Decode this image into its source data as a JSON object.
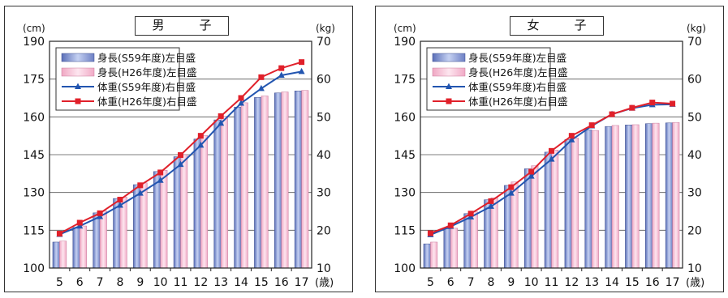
{
  "legend": {
    "height_s59": "身長(S59年度)左目盛",
    "height_h26": "身長(H26年度)左目盛",
    "weight_s59": "体重(S59年度)右目盛",
    "weight_h26": "体重(H26年度)右目盛"
  },
  "colors": {
    "height_s59": "#8fa3d6",
    "height_h26": "#f7c8da",
    "weight_s59": "#2255b0",
    "weight_h26": "#e0202a",
    "gridline": "#555555"
  },
  "chart_data": [
    {
      "title": "男　子",
      "type": "bar+line",
      "x": [
        "5",
        "6",
        "7",
        "8",
        "9",
        "10",
        "11",
        "12",
        "13",
        "14",
        "15",
        "16",
        "17"
      ],
      "x_unit": "(歳)",
      "y_left": {
        "unit": "(cm)",
        "range": [
          100,
          190
        ],
        "ticks": [
          100,
          115,
          130,
          145,
          160,
          175,
          190
        ]
      },
      "y_right": {
        "unit": "(kg)",
        "range": [
          10,
          70
        ],
        "ticks": [
          10,
          20,
          30,
          40,
          50,
          60,
          70
        ]
      },
      "grid": true,
      "legend_position": "top-left",
      "series": [
        {
          "name": "身長(S59年度)左目盛",
          "kind": "bar",
          "axis": "left",
          "values": [
            110.3,
            116.1,
            121.9,
            127.6,
            133.1,
            138.3,
            144.2,
            151.2,
            158.8,
            163.9,
            167.7,
            169.5,
            170.3
          ]
        },
        {
          "name": "身長(H26年度)左目盛",
          "kind": "bar",
          "axis": "left",
          "values": [
            110.7,
            116.7,
            122.7,
            128.2,
            133.8,
            138.8,
            145.0,
            152.6,
            160.3,
            165.6,
            168.3,
            169.9,
            170.5
          ]
        },
        {
          "name": "体重(S59年度)右目盛",
          "kind": "line",
          "axis": "right",
          "values": [
            18.9,
            21.1,
            23.6,
            26.6,
            29.8,
            33.2,
            37.4,
            42.5,
            48.3,
            53.6,
            57.5,
            61.0,
            62.0
          ]
        },
        {
          "name": "体重(H26年度)右目盛",
          "kind": "line",
          "axis": "right",
          "values": [
            19.1,
            22.0,
            24.5,
            28.1,
            31.9,
            35.3,
            39.9,
            45.0,
            50.2,
            55.0,
            60.5,
            62.9,
            64.5
          ]
        }
      ]
    },
    {
      "title": "女　子",
      "type": "bar+line",
      "x": [
        "5",
        "6",
        "7",
        "8",
        "9",
        "10",
        "11",
        "12",
        "13",
        "14",
        "15",
        "16",
        "17"
      ],
      "x_unit": "(歳)",
      "y_left": {
        "unit": "(cm)",
        "range": [
          100,
          190
        ],
        "ticks": [
          100,
          115,
          130,
          145,
          160,
          175,
          190
        ]
      },
      "y_right": {
        "unit": "(kg)",
        "range": [
          10,
          70
        ],
        "ticks": [
          10,
          20,
          30,
          40,
          50,
          60,
          70
        ]
      },
      "grid": true,
      "legend_position": "top-left",
      "series": [
        {
          "name": "身長(S59年度)左目盛",
          "kind": "bar",
          "axis": "left",
          "values": [
            109.6,
            115.6,
            121.6,
            127.1,
            132.8,
            139.4,
            146.0,
            151.0,
            154.8,
            156.2,
            156.8,
            157.3,
            157.6
          ]
        },
        {
          "name": "身長(H26年度)左目盛",
          "kind": "bar",
          "axis": "left",
          "values": [
            110.3,
            115.8,
            122.3,
            127.9,
            134.2,
            140.6,
            146.8,
            151.6,
            154.6,
            156.6,
            156.9,
            157.5,
            157.8
          ]
        },
        {
          "name": "体重(S59年度)右目盛",
          "kind": "line",
          "axis": "right",
          "values": [
            18.8,
            21.0,
            23.5,
            26.3,
            29.8,
            34.3,
            38.8,
            43.9,
            47.6,
            50.7,
            52.3,
            53.2,
            53.3
          ]
        },
        {
          "name": "体重(H26年度)右目盛",
          "kind": "line",
          "axis": "right",
          "values": [
            19.2,
            21.3,
            24.4,
            27.7,
            31.4,
            35.5,
            41.0,
            45.0,
            47.8,
            50.7,
            52.4,
            53.8,
            53.5
          ]
        }
      ]
    }
  ]
}
